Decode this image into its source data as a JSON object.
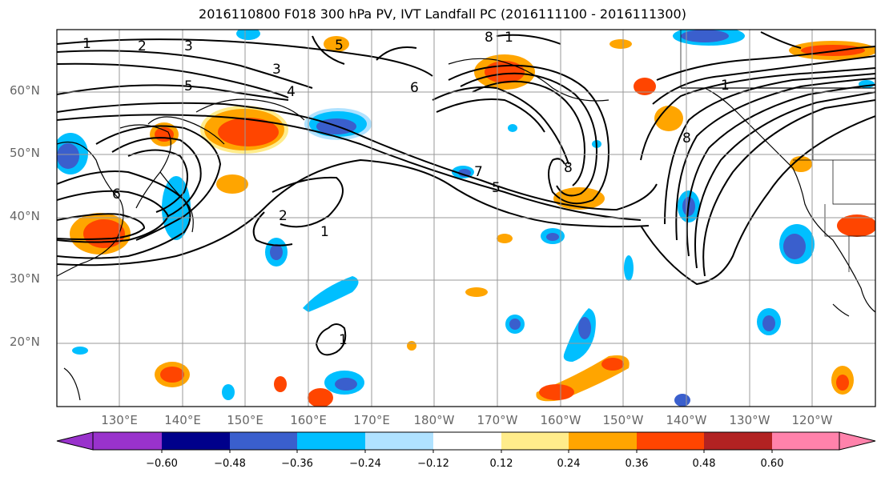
{
  "title": "2016110800 F018 300 hPa PV, IVT Landfall PC (2016111100 - 2016111300)",
  "lat_labels": [
    "60°N",
    "50°N",
    "40°N",
    "30°N",
    "20°N"
  ],
  "lon_labels": [
    "130°E",
    "140°E",
    "150°E",
    "160°E",
    "170°E",
    "180°W",
    "170°W",
    "160°W",
    "150°W",
    "140°W",
    "130°W",
    "120°W"
  ],
  "contour_labels": [
    "1",
    "2",
    "3",
    "5",
    "3",
    "4",
    "5",
    "6",
    "8",
    "7",
    "5",
    "8",
    "1",
    "1",
    "6",
    "8",
    "2",
    "1",
    "1"
  ],
  "colorbar": {
    "tick_labels": [
      "−0.60",
      "−0.48",
      "−0.36",
      "−0.24",
      "−0.12",
      "0.12",
      "0.24",
      "0.36",
      "0.48",
      "0.60"
    ],
    "colors": [
      "#9932CC",
      "#00008B",
      "#3A5FCD",
      "#00BFFF",
      "#B0E2FF",
      "#FFFFFF",
      "#FFEC8B",
      "#FFA500",
      "#FF4500",
      "#B22222",
      "#FF82AB"
    ]
  },
  "shading_colors": {
    "strong_negative": "#3A5FCD",
    "negative": "#00BFFF",
    "weak_negative": "#B0E2FF",
    "weak_positive": "#FFEC8B",
    "positive": "#FFA500",
    "strong_positive": "#FF4500"
  }
}
